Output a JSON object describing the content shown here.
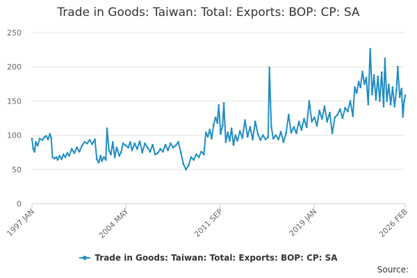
{
  "chart_data": {
    "type": "line",
    "title": "Trade in Goods: Taiwan: Total: Exports: BOP: CP: SA",
    "xlabel": "",
    "ylabel": "",
    "x_tick_labels": [
      "1997 JAN",
      "2004 MAY",
      "2011 SEP",
      "2019 JAN",
      "2026 FEB"
    ],
    "x_tick_years": [
      1997.0,
      2004.33,
      2011.67,
      2019.0,
      2026.08
    ],
    "x_range": [
      1997.0,
      2026.08
    ],
    "ylim": [
      0,
      250
    ],
    "y_ticks": [
      0,
      50,
      100,
      150,
      200,
      250
    ],
    "grid": true,
    "legend_position": "bottom-center",
    "series": [
      {
        "name": "Trade in Goods: Taiwan: Total: Exports: BOP: CP: SA",
        "color": "#1f8cc2",
        "points": [
          [
            1997.0,
            95
          ],
          [
            1997.1,
            80
          ],
          [
            1997.2,
            76
          ],
          [
            1997.3,
            90
          ],
          [
            1997.45,
            85
          ],
          [
            1997.6,
            95
          ],
          [
            1997.8,
            93
          ],
          [
            1997.95,
            97
          ],
          [
            1998.1,
            99
          ],
          [
            1998.25,
            94
          ],
          [
            1998.4,
            102
          ],
          [
            1998.5,
            96
          ],
          [
            1998.6,
            68
          ],
          [
            1998.75,
            66
          ],
          [
            1998.9,
            68
          ],
          [
            1999.0,
            64
          ],
          [
            1999.15,
            70
          ],
          [
            1999.3,
            65
          ],
          [
            1999.45,
            72
          ],
          [
            1999.6,
            68
          ],
          [
            1999.75,
            74
          ],
          [
            1999.9,
            70
          ],
          [
            2000.1,
            80
          ],
          [
            2000.3,
            74
          ],
          [
            2000.5,
            82
          ],
          [
            2000.7,
            76
          ],
          [
            2000.9,
            85
          ],
          [
            2001.1,
            90
          ],
          [
            2001.3,
            88
          ],
          [
            2001.5,
            93
          ],
          [
            2001.7,
            87
          ],
          [
            2001.9,
            94
          ],
          [
            2002.05,
            65
          ],
          [
            2002.2,
            60
          ],
          [
            2002.35,
            70
          ],
          [
            2002.45,
            62
          ],
          [
            2002.6,
            68
          ],
          [
            2002.75,
            64
          ],
          [
            2002.85,
            110
          ],
          [
            2003.0,
            78
          ],
          [
            2003.15,
            72
          ],
          [
            2003.3,
            90
          ],
          [
            2003.45,
            68
          ],
          [
            2003.6,
            82
          ],
          [
            2003.8,
            70
          ],
          [
            2003.95,
            75
          ],
          [
            2004.1,
            88
          ],
          [
            2004.3,
            85
          ],
          [
            2004.5,
            82
          ],
          [
            2004.65,
            90
          ],
          [
            2004.8,
            78
          ],
          [
            2005.0,
            88
          ],
          [
            2005.2,
            80
          ],
          [
            2005.4,
            91
          ],
          [
            2005.6,
            75
          ],
          [
            2005.8,
            88
          ],
          [
            2006.0,
            82
          ],
          [
            2006.2,
            76
          ],
          [
            2006.4,
            86
          ],
          [
            2006.6,
            72
          ],
          [
            2006.8,
            74
          ],
          [
            2007.0,
            80
          ],
          [
            2007.2,
            76
          ],
          [
            2007.4,
            86
          ],
          [
            2007.6,
            78
          ],
          [
            2007.8,
            88
          ],
          [
            2008.0,
            82
          ],
          [
            2008.2,
            85
          ],
          [
            2008.4,
            90
          ],
          [
            2008.6,
            75
          ],
          [
            2008.8,
            58
          ],
          [
            2009.0,
            50
          ],
          [
            2009.2,
            56
          ],
          [
            2009.4,
            68
          ],
          [
            2009.6,
            64
          ],
          [
            2009.8,
            72
          ],
          [
            2010.0,
            68
          ],
          [
            2010.2,
            76
          ],
          [
            2010.4,
            72
          ],
          [
            2010.55,
            104
          ],
          [
            2010.7,
            98
          ],
          [
            2010.85,
            108
          ],
          [
            2011.0,
            95
          ],
          [
            2011.15,
            115
          ],
          [
            2011.3,
            126
          ],
          [
            2011.45,
            118
          ],
          [
            2011.55,
            144
          ],
          [
            2011.7,
            102
          ],
          [
            2011.85,
            114
          ],
          [
            2011.95,
            147
          ],
          [
            2012.1,
            90
          ],
          [
            2012.25,
            104
          ],
          [
            2012.4,
            92
          ],
          [
            2012.55,
            110
          ],
          [
            2012.7,
            86
          ],
          [
            2012.85,
            100
          ],
          [
            2013.0,
            92
          ],
          [
            2013.2,
            106
          ],
          [
            2013.4,
            96
          ],
          [
            2013.6,
            122
          ],
          [
            2013.8,
            98
          ],
          [
            2014.0,
            112
          ],
          [
            2014.2,
            94
          ],
          [
            2014.4,
            120
          ],
          [
            2014.6,
            102
          ],
          [
            2014.8,
            93
          ],
          [
            2015.0,
            100
          ],
          [
            2015.2,
            94
          ],
          [
            2015.4,
            97
          ],
          [
            2015.5,
            199
          ],
          [
            2015.65,
            112
          ],
          [
            2015.8,
            95
          ],
          [
            2016.0,
            100
          ],
          [
            2016.2,
            94
          ],
          [
            2016.4,
            105
          ],
          [
            2016.6,
            90
          ],
          [
            2016.8,
            103
          ],
          [
            2017.0,
            130
          ],
          [
            2017.2,
            104
          ],
          [
            2017.4,
            112
          ],
          [
            2017.6,
            103
          ],
          [
            2017.8,
            120
          ],
          [
            2018.0,
            108
          ],
          [
            2018.2,
            124
          ],
          [
            2018.4,
            112
          ],
          [
            2018.6,
            150
          ],
          [
            2018.8,
            120
          ],
          [
            2019.0,
            126
          ],
          [
            2019.2,
            114
          ],
          [
            2019.4,
            136
          ],
          [
            2019.6,
            124
          ],
          [
            2019.8,
            142
          ],
          [
            2020.0,
            120
          ],
          [
            2020.2,
            133
          ],
          [
            2020.4,
            103
          ],
          [
            2020.6,
            126
          ],
          [
            2020.8,
            130
          ],
          [
            2021.0,
            138
          ],
          [
            2021.2,
            125
          ],
          [
            2021.4,
            140
          ],
          [
            2021.6,
            135
          ],
          [
            2021.8,
            150
          ],
          [
            2022.0,
            128
          ],
          [
            2022.15,
            170
          ],
          [
            2022.3,
            162
          ],
          [
            2022.45,
            178
          ],
          [
            2022.6,
            170
          ],
          [
            2022.75,
            193
          ],
          [
            2022.9,
            175
          ],
          [
            2023.05,
            184
          ],
          [
            2023.2,
            145
          ],
          [
            2023.35,
            226
          ],
          [
            2023.5,
            160
          ],
          [
            2023.65,
            188
          ],
          [
            2023.8,
            152
          ],
          [
            2023.95,
            186
          ],
          [
            2024.1,
            150
          ],
          [
            2024.25,
            192
          ],
          [
            2024.4,
            142
          ],
          [
            2024.5,
            212
          ],
          [
            2024.65,
            150
          ],
          [
            2024.8,
            174
          ],
          [
            2024.95,
            145
          ],
          [
            2025.1,
            170
          ],
          [
            2025.25,
            142
          ],
          [
            2025.4,
            166
          ],
          [
            2025.5,
            200
          ],
          [
            2025.65,
            156
          ],
          [
            2025.8,
            168
          ],
          [
            2025.9,
            127
          ],
          [
            2026.0,
            150
          ],
          [
            2026.08,
            158
          ]
        ]
      }
    ]
  },
  "legend": {
    "label": "Trade in Goods: Taiwan: Total: Exports: BOP: CP: SA"
  },
  "source": {
    "label": "Source:"
  }
}
